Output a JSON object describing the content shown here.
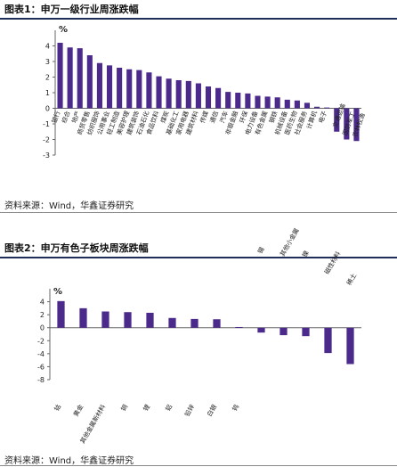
{
  "figure1": {
    "title": "图表1：申万一级行业周涨跌幅",
    "source": "资料来源：Wind，华鑫证券研究",
    "chart_data": {
      "type": "bar",
      "title": "",
      "xlabel": "",
      "ylabel": "%",
      "ylim": [
        -3,
        5
      ],
      "yticks": [
        -3,
        -2,
        -1,
        0,
        1,
        2,
        3,
        4
      ],
      "grid": false,
      "bar_color": "#4b2a8c",
      "categories": [
        "银行",
        "综合",
        "地产",
        "商贸零售",
        "纺织服饰",
        "公用事业",
        "轻工制造",
        "美容护理",
        "建筑装饰",
        "石油石化",
        "食品饮料",
        "煤炭",
        "基础化工",
        "家用电器",
        "建筑材料",
        "传媒",
        "通信",
        "汽车",
        "非银金融",
        "环保",
        "电力设备",
        "有色金属",
        "钢铁",
        "机械设备",
        "医药生物",
        "社会服务",
        "计算机",
        "电子",
        "交通运输",
        "国防军工",
        "农林牧渔"
      ],
      "values": [
        4.2,
        3.9,
        3.85,
        3.4,
        2.9,
        2.75,
        2.6,
        2.5,
        2.45,
        2.3,
        2.05,
        1.9,
        1.8,
        1.75,
        1.6,
        1.4,
        1.3,
        1.05,
        1.0,
        0.95,
        0.8,
        0.75,
        0.7,
        0.55,
        0.5,
        0.35,
        0.1,
        0.05,
        -1.5,
        -2.0,
        -2.1
      ]
    }
  },
  "figure2": {
    "title": "图表2：申万有色子板块周涨跌幅",
    "source": "资料来源：Wind，华鑫证券研究",
    "chart_data": {
      "type": "bar",
      "title": "",
      "xlabel": "",
      "ylabel": "%",
      "ylim": [
        -8,
        6
      ],
      "yticks": [
        -8,
        -6,
        -4,
        -2,
        0,
        2,
        4
      ],
      "grid": false,
      "bar_color": "#4b2a8c",
      "categories": [
        "钴",
        "黄金",
        "其他金属新材料",
        "铜",
        "锂",
        "铝",
        "铅锌",
        "白银",
        "钨",
        "锡",
        "其他小金属",
        "镍",
        "磁性材料",
        "稀土"
      ],
      "values": [
        4.1,
        3.0,
        2.5,
        2.4,
        2.3,
        1.5,
        1.35,
        1.3,
        0.1,
        -0.75,
        -1.15,
        -1.3,
        -3.9,
        -5.6
      ]
    }
  }
}
